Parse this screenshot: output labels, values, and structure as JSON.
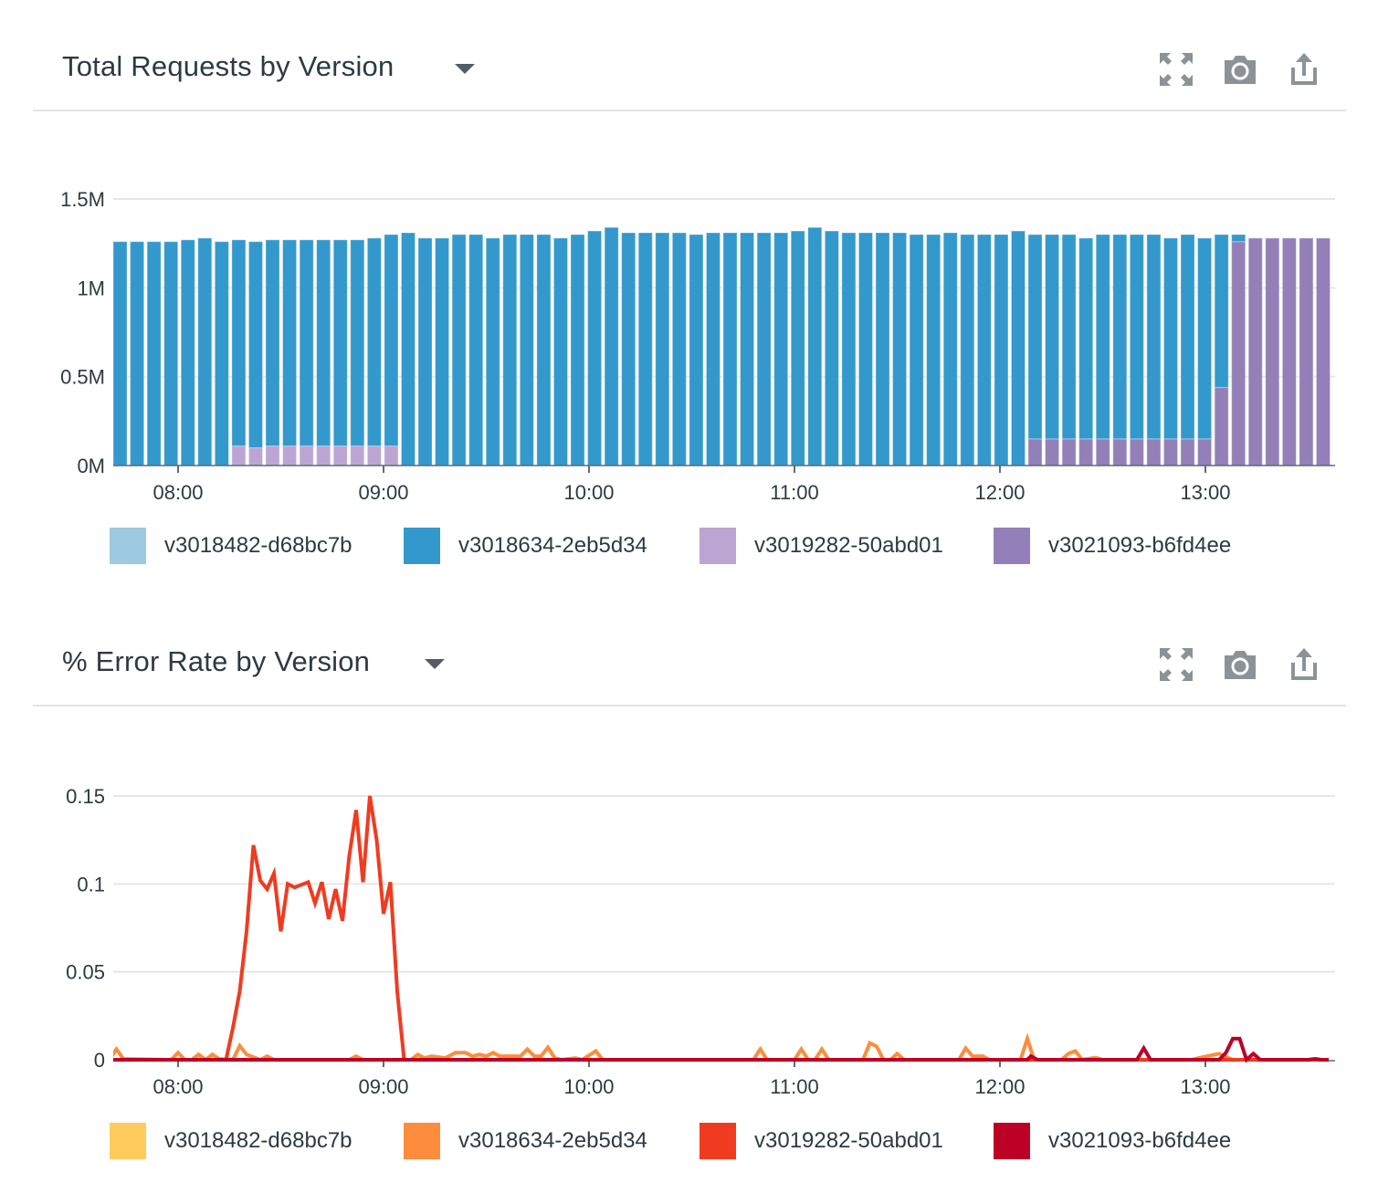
{
  "panels": [
    {
      "title": "Total Requests by Version",
      "icons": [
        "expand-icon",
        "camera-icon",
        "share-icon"
      ]
    },
    {
      "title": "% Error Rate by Version",
      "icons": [
        "expand-icon",
        "camera-icon",
        "share-icon"
      ]
    }
  ],
  "chart_data": [
    {
      "type": "bar",
      "stacked": true,
      "title": "Total Requests by Version",
      "xlabel": "",
      "ylabel": "",
      "unit": "M",
      "ylim": [
        0,
        1.5
      ],
      "yticks": [
        0,
        0.5,
        1,
        1.5
      ],
      "ytick_labels": [
        "0M",
        "0.5M",
        "1M",
        "1.5M"
      ],
      "xtick_labels": [
        "08:00",
        "09:00",
        "10:00",
        "11:00",
        "12:00",
        "13:00"
      ],
      "grid": true,
      "legend": "bottom",
      "categories": [
        "07:40",
        "07:45",
        "07:50",
        "07:55",
        "08:00",
        "08:05",
        "08:10",
        "08:15",
        "08:20",
        "08:25",
        "08:30",
        "08:35",
        "08:40",
        "08:45",
        "08:50",
        "08:55",
        "09:00",
        "09:05",
        "09:10",
        "09:15",
        "09:20",
        "09:25",
        "09:30",
        "09:35",
        "09:40",
        "09:45",
        "09:50",
        "09:55",
        "10:00",
        "10:05",
        "10:10",
        "10:15",
        "10:20",
        "10:25",
        "10:30",
        "10:35",
        "10:40",
        "10:45",
        "10:50",
        "10:55",
        "11:00",
        "11:05",
        "11:10",
        "11:15",
        "11:20",
        "11:25",
        "11:30",
        "11:35",
        "11:40",
        "11:45",
        "11:50",
        "11:55",
        "12:00",
        "12:05",
        "12:10",
        "12:15",
        "12:20",
        "12:25",
        "12:30",
        "12:35",
        "12:40",
        "12:45",
        "12:50",
        "12:55",
        "13:00",
        "13:05",
        "13:10",
        "13:15",
        "13:20",
        "13:25",
        "13:30",
        "13:35"
      ],
      "series": [
        {
          "name": "v3018482-d68bc7b",
          "color": "#9ecae1",
          "values": [
            0,
            0,
            0,
            0,
            0,
            0,
            0,
            0,
            0,
            0,
            0,
            0,
            0,
            0,
            0,
            0,
            0,
            0,
            0,
            0,
            0,
            0,
            0,
            0,
            0,
            0,
            0,
            0,
            0,
            0,
            0,
            0,
            0,
            0,
            0,
            0,
            0,
            0,
            0,
            0,
            0,
            0,
            0,
            0,
            0,
            0,
            0,
            0,
            0,
            0,
            0,
            0,
            0,
            0,
            0,
            0,
            0,
            0,
            0,
            0,
            0,
            0,
            0,
            0,
            0,
            0,
            0,
            0,
            0,
            0,
            0,
            0
          ]
        },
        {
          "name": "v3018634-2eb5d34",
          "color": "#3399cc",
          "values": [
            1.26,
            1.26,
            1.26,
            1.26,
            1.27,
            1.28,
            1.26,
            1.16,
            1.16,
            1.16,
            1.16,
            1.16,
            1.16,
            1.16,
            1.16,
            1.17,
            1.19,
            1.31,
            1.28,
            1.28,
            1.3,
            1.3,
            1.28,
            1.3,
            1.3,
            1.3,
            1.28,
            1.3,
            1.32,
            1.34,
            1.31,
            1.31,
            1.31,
            1.31,
            1.3,
            1.31,
            1.31,
            1.31,
            1.31,
            1.31,
            1.32,
            1.34,
            1.32,
            1.31,
            1.31,
            1.31,
            1.31,
            1.3,
            1.3,
            1.31,
            1.3,
            1.3,
            1.3,
            1.32,
            1.15,
            1.15,
            1.15,
            1.13,
            1.15,
            1.15,
            1.15,
            1.15,
            1.13,
            1.15,
            1.13,
            0.86,
            0.04,
            0,
            0,
            0,
            0,
            0
          ]
        },
        {
          "name": "v3019282-50abd01",
          "color": "#bca5d3",
          "values": [
            0,
            0,
            0,
            0,
            0,
            0,
            0,
            0.11,
            0.1,
            0.11,
            0.11,
            0.11,
            0.11,
            0.11,
            0.11,
            0.11,
            0.11,
            0,
            0,
            0,
            0,
            0,
            0,
            0,
            0,
            0,
            0,
            0,
            0,
            0,
            0,
            0,
            0,
            0,
            0,
            0,
            0,
            0,
            0,
            0,
            0,
            0,
            0,
            0,
            0,
            0,
            0,
            0,
            0,
            0,
            0,
            0,
            0,
            0,
            0,
            0,
            0,
            0,
            0,
            0,
            0,
            0,
            0,
            0,
            0,
            0,
            0,
            0,
            0,
            0,
            0,
            0
          ]
        },
        {
          "name": "v3021093-b6fd4ee",
          "color": "#9380b8",
          "values": [
            0,
            0,
            0,
            0,
            0,
            0,
            0,
            0,
            0,
            0,
            0,
            0,
            0,
            0,
            0,
            0,
            0,
            0,
            0,
            0,
            0,
            0,
            0,
            0,
            0,
            0,
            0,
            0,
            0,
            0,
            0,
            0,
            0,
            0,
            0,
            0,
            0,
            0,
            0,
            0,
            0,
            0,
            0,
            0,
            0,
            0,
            0,
            0,
            0,
            0,
            0,
            0,
            0,
            0,
            0.15,
            0.15,
            0.15,
            0.15,
            0.15,
            0.15,
            0.15,
            0.15,
            0.15,
            0.15,
            0.15,
            0.44,
            1.26,
            1.28,
            1.28,
            1.28,
            1.28,
            1.28
          ]
        }
      ]
    },
    {
      "type": "line",
      "title": "% Error Rate by Version",
      "xlabel": "",
      "ylabel": "",
      "ylim": [
        0,
        0.15
      ],
      "yticks": [
        0,
        0.05,
        0.1,
        0.15
      ],
      "ytick_labels": [
        "0",
        "0.05",
        "0.1",
        "0.15"
      ],
      "xtick_labels": [
        "08:00",
        "09:00",
        "10:00",
        "11:00",
        "12:00",
        "13:00"
      ],
      "xlim": [
        "07:40",
        "13:36"
      ],
      "grid": true,
      "legend": "bottom",
      "series": [
        {
          "name": "v3018482-d68bc7b",
          "color": "#fecb5c",
          "points": [
            [
              "07:40",
              0
            ],
            [
              "13:36",
              0
            ]
          ]
        },
        {
          "name": "v3018634-2eb5d34",
          "color": "#fd8d3c",
          "points": [
            [
              "07:40",
              0
            ],
            [
              "07:42",
              0.006
            ],
            [
              "07:44",
              0.0005
            ],
            [
              "07:58",
              0
            ],
            [
              "08:00",
              0.004
            ],
            [
              "08:02",
              0
            ],
            [
              "08:04",
              0
            ],
            [
              "08:06",
              0.003
            ],
            [
              "08:08",
              0
            ],
            [
              "08:10",
              0.003
            ],
            [
              "08:12",
              0.0005
            ],
            [
              "08:16",
              0
            ],
            [
              "08:18",
              0.008
            ],
            [
              "08:20",
              0.003
            ],
            [
              "08:24",
              0
            ],
            [
              "08:26",
              0.002
            ],
            [
              "08:28",
              0
            ],
            [
              "08:50",
              0
            ],
            [
              "08:52",
              0.002
            ],
            [
              "08:54",
              0
            ],
            [
              "09:08",
              0
            ],
            [
              "09:10",
              0.003
            ],
            [
              "09:12",
              0.001
            ],
            [
              "09:14",
              0.002
            ],
            [
              "09:18",
              0.001
            ],
            [
              "09:21",
              0.004
            ],
            [
              "09:24",
              0.004
            ],
            [
              "09:26",
              0.002
            ],
            [
              "09:28",
              0.003
            ],
            [
              "09:30",
              0.002
            ],
            [
              "09:32",
              0.004
            ],
            [
              "09:34",
              0.002
            ],
            [
              "09:40",
              0.002
            ],
            [
              "09:42",
              0.006
            ],
            [
              "09:44",
              0.002
            ],
            [
              "09:46",
              0.002
            ],
            [
              "09:48",
              0.007
            ],
            [
              "09:50",
              0.001
            ],
            [
              "09:52",
              0
            ],
            [
              "09:56",
              0.001
            ],
            [
              "09:58",
              0
            ],
            [
              "10:02",
              0.005
            ],
            [
              "10:04",
              0
            ],
            [
              "10:48",
              0
            ],
            [
              "10:50",
              0.006
            ],
            [
              "10:52",
              0
            ],
            [
              "11:00",
              0
            ],
            [
              "11:02",
              0.006
            ],
            [
              "11:04",
              0
            ],
            [
              "11:06",
              0
            ],
            [
              "11:08",
              0.006
            ],
            [
              "11:10",
              0
            ],
            [
              "11:20",
              0
            ],
            [
              "11:22",
              0.0095
            ],
            [
              "11:24",
              0.0075
            ],
            [
              "11:26",
              0
            ],
            [
              "11:28",
              0
            ],
            [
              "11:30",
              0.0035
            ],
            [
              "11:32",
              0
            ],
            [
              "11:48",
              0
            ],
            [
              "11:50",
              0.0066
            ],
            [
              "11:52",
              0.002
            ],
            [
              "11:55",
              0.002
            ],
            [
              "11:57",
              0
            ],
            [
              "12:06",
              0
            ],
            [
              "12:08",
              0.012
            ],
            [
              "12:10",
              0
            ],
            [
              "12:18",
              0
            ],
            [
              "12:20",
              0.0035
            ],
            [
              "12:22",
              0.005
            ],
            [
              "12:24",
              0
            ],
            [
              "12:28",
              0.0012
            ],
            [
              "12:30",
              0
            ],
            [
              "12:56",
              0
            ],
            [
              "12:58",
              0.001
            ],
            [
              "13:04",
              0.0035
            ],
            [
              "13:06",
              0.0016
            ],
            [
              "13:08",
              0
            ],
            [
              "13:36",
              0
            ]
          ]
        },
        {
          "name": "v3019282-50abd01",
          "color": "#f03b20",
          "points": [
            [
              "07:40",
              0
            ],
            [
              "08:14",
              0
            ],
            [
              "08:16",
              0.018
            ],
            [
              "08:18",
              0.039
            ],
            [
              "08:20",
              0.073
            ],
            [
              "08:22",
              0.122
            ],
            [
              "08:24",
              0.102
            ],
            [
              "08:26",
              0.097
            ],
            [
              "08:28",
              0.106
            ],
            [
              "08:30",
              0.073
            ],
            [
              "08:32",
              0.1
            ],
            [
              "08:34",
              0.098
            ],
            [
              "08:38",
              0.101
            ],
            [
              "08:40",
              0.089
            ],
            [
              "08:42",
              0.101
            ],
            [
              "08:44",
              0.08
            ],
            [
              "08:46",
              0.097
            ],
            [
              "08:48",
              0.079
            ],
            [
              "08:50",
              0.116
            ],
            [
              "08:52",
              0.142
            ],
            [
              "08:54",
              0.101
            ],
            [
              "08:56",
              0.15
            ],
            [
              "08:58",
              0.125
            ],
            [
              "09:00",
              0.083
            ],
            [
              "09:02",
              0.101
            ],
            [
              "09:04",
              0.039
            ],
            [
              "09:06",
              0
            ],
            [
              "13:36",
              0
            ]
          ]
        },
        {
          "name": "v3021093-b6fd4ee",
          "color": "#bd0026",
          "points": [
            [
              "07:40",
              0
            ],
            [
              "12:08",
              0
            ],
            [
              "12:09",
              0.002
            ],
            [
              "12:11",
              0
            ],
            [
              "12:40",
              0
            ],
            [
              "12:42",
              0.0066
            ],
            [
              "12:44",
              0
            ],
            [
              "13:04",
              0
            ],
            [
              "13:06",
              0.004
            ],
            [
              "13:08",
              0.012
            ],
            [
              "13:10",
              0.012
            ],
            [
              "13:12",
              0
            ],
            [
              "13:14",
              0.0035
            ],
            [
              "13:16",
              0
            ],
            [
              "13:30",
              0
            ],
            [
              "13:32",
              0.0005
            ],
            [
              "13:34",
              0
            ],
            [
              "13:36",
              0
            ]
          ]
        }
      ]
    }
  ]
}
